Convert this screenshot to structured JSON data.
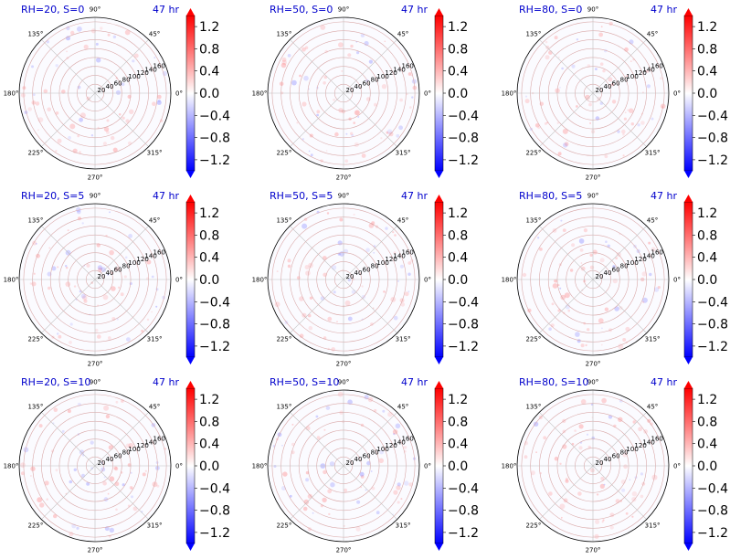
{
  "figure": {
    "grid": "3x3",
    "colormap": "bwr",
    "background": "#ffffff",
    "title_color": "#0000cc"
  },
  "chart_data": [
    {
      "type": "heatmap",
      "title": "RH=20, S=0",
      "time_label": "47 hr",
      "radial_ticks": [
        "20",
        "40",
        "60",
        "80",
        "100",
        "120",
        "140",
        "160"
      ],
      "angle_ticks": [
        "0°",
        "45°",
        "90°",
        "135°",
        "180°",
        "225°",
        "270°",
        "315°"
      ],
      "colorbar_ticks": [
        "1.2",
        "0.8",
        "0.4",
        "0.0",
        "−0.4",
        "−0.8",
        "−1.2"
      ],
      "colorbar_range": [
        -1.4,
        1.4
      ],
      "colorbar_extend": "both",
      "rlim": [
        0,
        170
      ],
      "grid": true
    },
    {
      "type": "heatmap",
      "title": "RH=50, S=0",
      "time_label": "47 hr",
      "radial_ticks": [
        "20",
        "40",
        "60",
        "80",
        "100",
        "120",
        "140",
        "160"
      ],
      "angle_ticks": [
        "0°",
        "45°",
        "90°",
        "135°",
        "180°",
        "225°",
        "270°",
        "315°"
      ],
      "colorbar_ticks": [
        "1.2",
        "0.8",
        "0.4",
        "0.0",
        "−0.4",
        "−0.8",
        "−1.2"
      ],
      "colorbar_range": [
        -1.4,
        1.4
      ],
      "colorbar_extend": "both",
      "rlim": [
        0,
        170
      ],
      "grid": true
    },
    {
      "type": "heatmap",
      "title": "RH=80, S=0",
      "time_label": "47 hr",
      "radial_ticks": [
        "20",
        "40",
        "60",
        "80",
        "100",
        "120",
        "140",
        "160"
      ],
      "angle_ticks": [
        "0°",
        "45°",
        "90°",
        "135°",
        "180°",
        "225°",
        "270°",
        "315°"
      ],
      "colorbar_ticks": [
        "1.2",
        "0.8",
        "0.4",
        "0.0",
        "−0.4",
        "−0.8",
        "−1.2"
      ],
      "colorbar_range": [
        -1.4,
        1.4
      ],
      "colorbar_extend": "both",
      "rlim": [
        0,
        170
      ],
      "grid": true
    },
    {
      "type": "heatmap",
      "title": "RH=20, S=5",
      "time_label": "47 hr",
      "radial_ticks": [
        "20",
        "40",
        "60",
        "80",
        "100",
        "120",
        "140",
        "160"
      ],
      "angle_ticks": [
        "0°",
        "45°",
        "90°",
        "135°",
        "180°",
        "225°",
        "270°",
        "315°"
      ],
      "colorbar_ticks": [
        "1.2",
        "0.8",
        "0.4",
        "0.0",
        "−0.4",
        "−0.8",
        "−1.2"
      ],
      "colorbar_range": [
        -1.4,
        1.4
      ],
      "colorbar_extend": "both",
      "rlim": [
        0,
        170
      ],
      "grid": true
    },
    {
      "type": "heatmap",
      "title": "RH=50, S=5",
      "time_label": "47 hr",
      "radial_ticks": [
        "20",
        "40",
        "60",
        "80",
        "100",
        "120",
        "140",
        "160"
      ],
      "angle_ticks": [
        "0°",
        "45°",
        "90°",
        "135°",
        "180°",
        "225°",
        "270°",
        "315°"
      ],
      "colorbar_ticks": [
        "1.2",
        "0.8",
        "0.4",
        "0.0",
        "−0.4",
        "−0.8",
        "−1.2"
      ],
      "colorbar_range": [
        -1.4,
        1.4
      ],
      "colorbar_extend": "both",
      "rlim": [
        0,
        170
      ],
      "grid": true
    },
    {
      "type": "heatmap",
      "title": "RH=80, S=5",
      "time_label": "47 hr",
      "radial_ticks": [
        "20",
        "40",
        "60",
        "80",
        "100",
        "120",
        "140",
        "160"
      ],
      "angle_ticks": [
        "0°",
        "45°",
        "90°",
        "135°",
        "180°",
        "225°",
        "270°",
        "315°"
      ],
      "colorbar_ticks": [
        "1.2",
        "0.8",
        "0.4",
        "0.0",
        "−0.4",
        "−0.8",
        "−1.2"
      ],
      "colorbar_range": [
        -1.4,
        1.4
      ],
      "colorbar_extend": "both",
      "rlim": [
        0,
        170
      ],
      "grid": true
    },
    {
      "type": "heatmap",
      "title": "RH=20, S=10",
      "time_label": "47 hr",
      "radial_ticks": [
        "20",
        "40",
        "60",
        "80",
        "100",
        "120",
        "140",
        "160"
      ],
      "angle_ticks": [
        "0°",
        "45°",
        "90°",
        "135°",
        "180°",
        "225°",
        "270°",
        "315°"
      ],
      "colorbar_ticks": [
        "1.2",
        "0.8",
        "0.4",
        "0.0",
        "−0.4",
        "−0.8",
        "−1.2"
      ],
      "colorbar_range": [
        -1.4,
        1.4
      ],
      "colorbar_extend": "both",
      "rlim": [
        0,
        170
      ],
      "grid": true
    },
    {
      "type": "heatmap",
      "title": "RH=50, S=10",
      "time_label": "47 hr",
      "radial_ticks": [
        "20",
        "40",
        "60",
        "80",
        "100",
        "120",
        "140",
        "160"
      ],
      "angle_ticks": [
        "0°",
        "45°",
        "90°",
        "135°",
        "180°",
        "225°",
        "270°",
        "315°"
      ],
      "colorbar_ticks": [
        "1.2",
        "0.8",
        "0.4",
        "0.0",
        "−0.4",
        "−0.8",
        "−1.2"
      ],
      "colorbar_range": [
        -1.4,
        1.4
      ],
      "colorbar_extend": "both",
      "rlim": [
        0,
        170
      ],
      "grid": true
    },
    {
      "type": "heatmap",
      "title": "RH=80, S=10",
      "time_label": "47 hr",
      "radial_ticks": [
        "20",
        "40",
        "60",
        "80",
        "100",
        "120",
        "140",
        "160"
      ],
      "angle_ticks": [
        "0°",
        "45°",
        "90°",
        "135°",
        "180°",
        "225°",
        "270°",
        "315°"
      ],
      "colorbar_ticks": [
        "1.2",
        "0.8",
        "0.4",
        "0.0",
        "−0.4",
        "−0.8",
        "−1.2"
      ],
      "colorbar_range": [
        -1.4,
        1.4
      ],
      "colorbar_extend": "both",
      "rlim": [
        0,
        170
      ],
      "grid": true
    }
  ]
}
